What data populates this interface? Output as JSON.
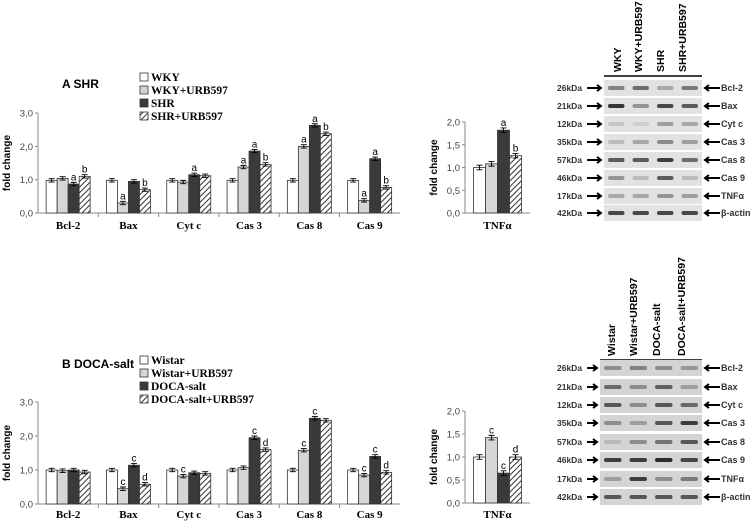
{
  "colors": {
    "g0": "#ffffff",
    "g1": "#d6d6d6",
    "g2": "#3a3a3a",
    "g3": "hatch",
    "axis": "#888888"
  },
  "chart_data": [
    {
      "type": "bar",
      "panel": "A",
      "title": "A SHR",
      "ylabel": "fold change",
      "ylim": [
        0,
        3
      ],
      "yticks": [
        "0,0",
        "1,0",
        "2,0",
        "3,0"
      ],
      "legend": [
        "WKY",
        "WKY+URB597",
        "SHR",
        "SHR+URB597"
      ],
      "categories": [
        "Bcl-2",
        "Bax",
        "Cyt c",
        "Cas 3",
        "Cas 8",
        "Cas 9"
      ],
      "series": [
        {
          "name": "WKY",
          "values": [
            0.98,
            0.98,
            0.98,
            0.98,
            0.98,
            0.98
          ]
        },
        {
          "name": "WKY+URB597",
          "values": [
            1.04,
            0.3,
            0.93,
            1.38,
            2.0,
            0.38
          ]
        },
        {
          "name": "SHR",
          "values": [
            0.87,
            0.95,
            1.15,
            1.86,
            2.63,
            1.63
          ]
        },
        {
          "name": "SHR+URB597",
          "values": [
            1.1,
            0.7,
            1.12,
            1.46,
            2.38,
            0.77
          ]
        }
      ],
      "annotations": [
        [
          "",
          "",
          "a",
          "b"
        ],
        [
          "",
          "a",
          "",
          "b"
        ],
        [
          "",
          "",
          "a",
          ""
        ],
        [
          "",
          "a",
          "a",
          "b"
        ],
        [
          "",
          "a",
          "a",
          "b"
        ],
        [
          "",
          "a",
          "a",
          "b"
        ]
      ]
    },
    {
      "type": "bar",
      "panel": "A",
      "ylabel": "fold change",
      "ylim": [
        0,
        2
      ],
      "yticks": [
        "0,0",
        "0,5",
        "1,0",
        "1,5",
        "2,0"
      ],
      "categories": [
        "TNFα"
      ],
      "series": [
        {
          "name": "WKY",
          "values": [
            1.0
          ]
        },
        {
          "name": "WKY+URB597",
          "values": [
            1.08
          ]
        },
        {
          "name": "SHR",
          "values": [
            1.82
          ]
        },
        {
          "name": "SHR+URB597",
          "values": [
            1.26
          ]
        }
      ],
      "annotations": [
        [
          "",
          "",
          "a",
          "b"
        ]
      ]
    },
    {
      "type": "bar",
      "panel": "B",
      "title": "B DOCA-salt",
      "ylabel": "fold change",
      "ylim": [
        0,
        3
      ],
      "yticks": [
        "0,0",
        "1,0",
        "2,0",
        "3,0"
      ],
      "legend": [
        "Wistar",
        "Wistar+URB597",
        "DOCA-salt",
        "DOCA-salt+URB597"
      ],
      "categories": [
        "Bcl-2",
        "Bax",
        "Cyt c",
        "Cas 3",
        "Cas 8",
        "Cas 9"
      ],
      "series": [
        {
          "name": "Wistar",
          "values": [
            1.0,
            1.0,
            1.0,
            1.0,
            1.0,
            1.0
          ]
        },
        {
          "name": "Wistar+URB597",
          "values": [
            0.98,
            0.45,
            0.82,
            1.07,
            1.58,
            0.85
          ]
        },
        {
          "name": "DOCA-salt",
          "values": [
            1.0,
            1.14,
            0.92,
            1.95,
            2.52,
            1.4
          ]
        },
        {
          "name": "DOCA-salt+URB597",
          "values": [
            0.94,
            0.58,
            0.9,
            1.6,
            2.46,
            0.93
          ]
        }
      ],
      "annotations": [
        [
          "",
          "",
          "",
          ""
        ],
        [
          "",
          "c",
          "c",
          "d"
        ],
        [
          "",
          "c",
          "",
          ""
        ],
        [
          "",
          "",
          "c",
          "d"
        ],
        [
          "",
          "c",
          "c",
          ""
        ],
        [
          "",
          "c",
          "c",
          "d"
        ]
      ]
    },
    {
      "type": "bar",
      "panel": "B",
      "ylabel": "fold change",
      "ylim": [
        0,
        2
      ],
      "yticks": [
        "0,0",
        "0,5",
        "1,0",
        "1,5",
        "2,0"
      ],
      "categories": [
        "TNFα"
      ],
      "series": [
        {
          "name": "Wistar",
          "values": [
            1.0
          ]
        },
        {
          "name": "Wistar+URB597",
          "values": [
            1.42
          ]
        },
        {
          "name": "DOCA-salt",
          "values": [
            0.65
          ]
        },
        {
          "name": "DOCA-salt+URB597",
          "values": [
            1.0
          ]
        }
      ],
      "annotations": [
        [
          "",
          "c",
          "c",
          "d"
        ]
      ]
    }
  ],
  "blots": [
    {
      "panel": "A",
      "lanes": [
        "WKY",
        "WKY+URB597",
        "SHR",
        "SHR+URB597"
      ],
      "kda": [
        "26kDa",
        "21kDa",
        "12kDa",
        "35kDa",
        "57kDa",
        "46kDa",
        "17kDa",
        "42kDa"
      ],
      "proteins": [
        "Bcl-2",
        "Bax",
        "Cyt c",
        "Cas 3",
        "Cas 8",
        "Cas 9",
        "TNFα",
        "β-actin"
      ]
    },
    {
      "panel": "B",
      "lanes": [
        "Wistar",
        "Wistar+URB597",
        "DOCA-salt",
        "DOCA-salt+URB597"
      ],
      "kda": [
        "26kDa",
        "21kDa",
        "12kDa",
        "35kDa",
        "57kDa",
        "46kDa",
        "17kDa",
        "42kDa"
      ],
      "proteins": [
        "Bcl-2",
        "Bax",
        "Cyt c",
        "Cas 3",
        "Cas 8",
        "Cas 9",
        "TNFα",
        "β-actin"
      ]
    }
  ]
}
